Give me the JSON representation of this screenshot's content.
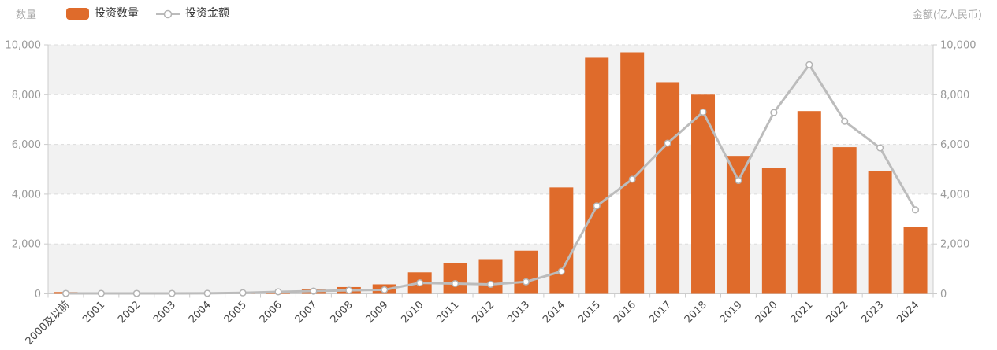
{
  "header": {
    "left_axis_title": "数量",
    "right_axis_title": "金额(亿人民币)",
    "legend": [
      {
        "label": "投资数量",
        "type": "bar"
      },
      {
        "label": "投资金额",
        "type": "line"
      }
    ]
  },
  "colors": {
    "bar": "#df6b2b",
    "line": "#bcbcbc",
    "marker_fill": "#ffffff",
    "marker_stroke": "#b3b3b3",
    "grid_dashed": "#dcdcdc",
    "axis_line": "#cccccc",
    "band_gray": "#f2f2f2",
    "y_label": "#9a9a9a",
    "x_label": "#474747"
  },
  "chart_data": {
    "type": "bar",
    "subtype": "bar+line dual-axis",
    "title": "",
    "categories": [
      "2000及以前",
      "2001",
      "2002",
      "2003",
      "2004",
      "2005",
      "2006",
      "2007",
      "2008",
      "2009",
      "2010",
      "2011",
      "2012",
      "2013",
      "2014",
      "2015",
      "2016",
      "2017",
      "2018",
      "2019",
      "2020",
      "2021",
      "2022",
      "2023",
      "2024"
    ],
    "series": [
      {
        "name": "投资数量",
        "type": "bar",
        "axis": "left",
        "color": "#df6b2b",
        "values": [
          70,
          25,
          20,
          15,
          15,
          40,
          90,
          190,
          270,
          380,
          860,
          1230,
          1390,
          1730,
          4270,
          9480,
          9700,
          8500,
          8000,
          5540,
          5060,
          7340,
          5890,
          4930,
          2700
        ]
      },
      {
        "name": "投资金额",
        "type": "line",
        "axis": "right",
        "color": "#bcbcbc",
        "values": [
          15,
          15,
          15,
          15,
          20,
          40,
          80,
          110,
          140,
          160,
          440,
          410,
          380,
          480,
          900,
          3530,
          4600,
          6050,
          7300,
          4550,
          7280,
          9200,
          6930,
          5860,
          3370
        ]
      }
    ],
    "left_axis": {
      "title": "数量",
      "min": 0,
      "max": 10000,
      "ticks": [
        0,
        2000,
        4000,
        6000,
        8000,
        10000
      ],
      "tick_labels": [
        "0",
        "2,000",
        "4,000",
        "6,000",
        "8,000",
        "10,000"
      ]
    },
    "right_axis": {
      "title": "金额(亿人民币)",
      "min": 0,
      "max": 10000,
      "ticks": [
        0,
        2000,
        4000,
        6000,
        8000,
        10000
      ],
      "tick_labels": [
        "0",
        "2,000",
        "4,000",
        "6,000",
        "8,000",
        "10,000"
      ]
    },
    "grid": "horizontal dashed lines every 2000",
    "split_area": "alternating bands: gray 0-2000, 4000-6000, 8000-10000",
    "x_label_rotation": 45,
    "legend_position": "top-left"
  }
}
